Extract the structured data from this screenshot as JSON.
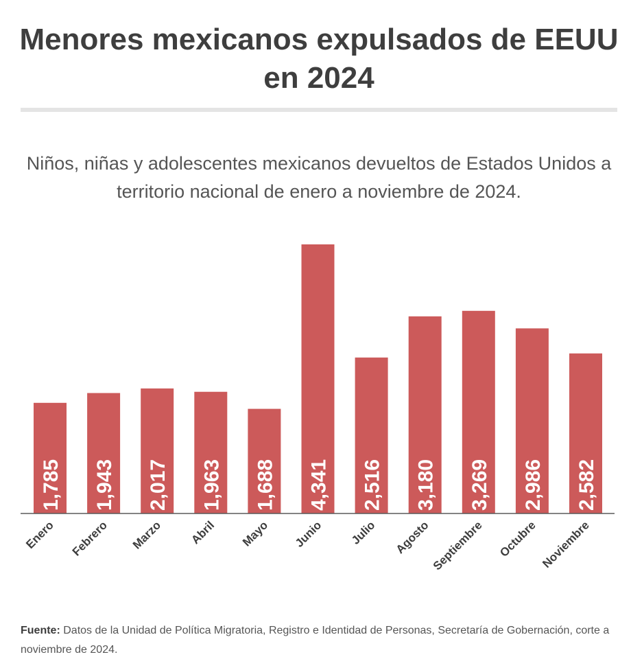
{
  "title": "Menores mexicanos expulsados de EEUU en 2024",
  "subtitle": "Niños, niñas y adolescentes mexicanos devueltos de Estados Unidos a territorio nacional de enero a noviembre de 2024.",
  "footer": {
    "label": "Fuente:",
    "text": "Datos de la Unidad de Política Migratoria, Registro e Identidad de Personas, Secretaría de Gobernación, corte a noviembre de 2024."
  },
  "colors": {
    "bar": "#cc5a5a",
    "bar_label": "#ffffff",
    "axis": "#5a5a5a",
    "tick_label": "#3d3d3d"
  },
  "chart_data": {
    "type": "bar",
    "categories": [
      "Enero",
      "Febrero",
      "Marzo",
      "Abril",
      "Mayo",
      "Junio",
      "Julio",
      "Agosto",
      "Septiembre",
      "Octubre",
      "Noviembre"
    ],
    "values": [
      1785,
      1943,
      2017,
      1963,
      1688,
      4341,
      2516,
      3180,
      3269,
      2986,
      2582
    ],
    "value_labels": [
      "1,785",
      "1,943",
      "2,017",
      "1,963",
      "1,688",
      "4,341",
      "2,516",
      "3,180",
      "3,269",
      "2,986",
      "2,582"
    ],
    "title": "Menores mexicanos expulsados de EEUU en 2024",
    "xlabel": "",
    "ylabel": "",
    "ylim": [
      0,
      4341
    ],
    "grid": false,
    "legend": "none"
  }
}
